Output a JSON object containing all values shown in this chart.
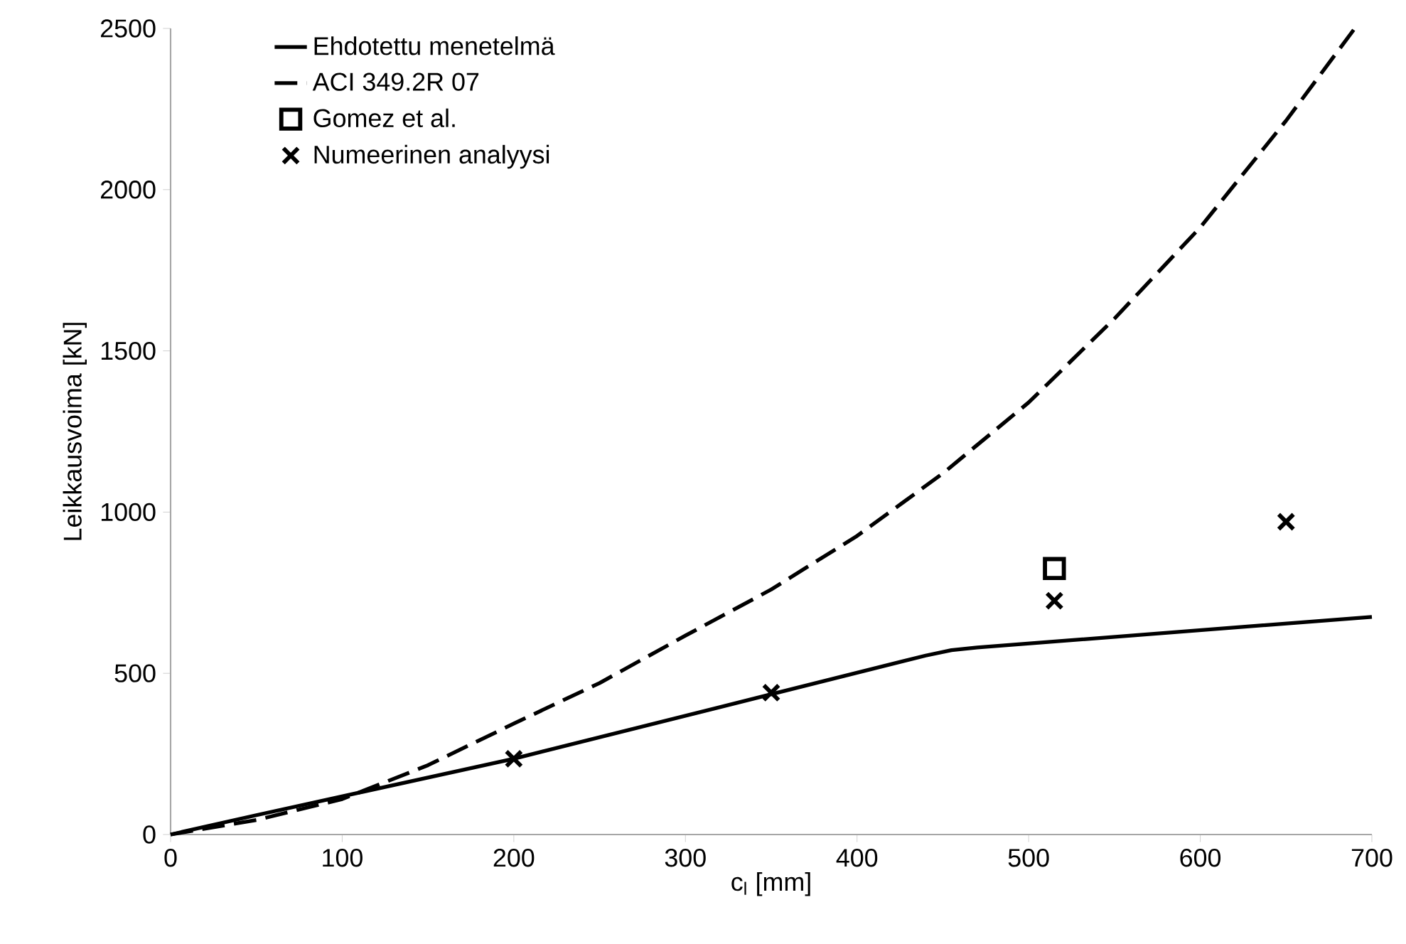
{
  "chart_data": {
    "type": "line",
    "xlabel": "c$_{l}$ [mm]",
    "ylabel": "Leikkausvoima [kN]",
    "xlim": [
      0,
      700
    ],
    "ylim": [
      0,
      2500
    ],
    "xticks": [
      0,
      100,
      200,
      300,
      400,
      500,
      600,
      700
    ],
    "yticks": [
      0,
      500,
      1000,
      1500,
      2000,
      2500
    ],
    "grid": false,
    "legend": "top left",
    "series": [
      {
        "name": "Ehdotettu menetelmä",
        "line_style": "solid",
        "marker": "none",
        "color": "#000000",
        "x": [
          0,
          50,
          200,
          350,
          440,
          455,
          470,
          700
        ],
        "values": [
          0,
          60,
          235,
          435,
          555,
          572,
          580,
          675
        ]
      },
      {
        "name": "ACI 349.2R 07",
        "line_style": "dashed",
        "marker": "none",
        "color": "#000000",
        "x": [
          0,
          50,
          100,
          150,
          200,
          250,
          300,
          350,
          400,
          450,
          500,
          550,
          600,
          650,
          690
        ],
        "values": [
          0,
          45,
          110,
          215,
          344,
          470,
          617,
          760,
          926,
          1120,
          1340,
          1600,
          1883,
          2214,
          2500
        ]
      },
      {
        "name": "Gomez et al.",
        "type": "scatter",
        "marker": "square",
        "color": "#000000",
        "x": [
          515
        ],
        "values": [
          825
        ]
      },
      {
        "name": "Numeerinen analyysi",
        "type": "scatter",
        "marker": "cross",
        "color": "#000000",
        "x": [
          200,
          350,
          515,
          650
        ],
        "values": [
          235,
          440,
          725,
          970
        ]
      }
    ]
  }
}
